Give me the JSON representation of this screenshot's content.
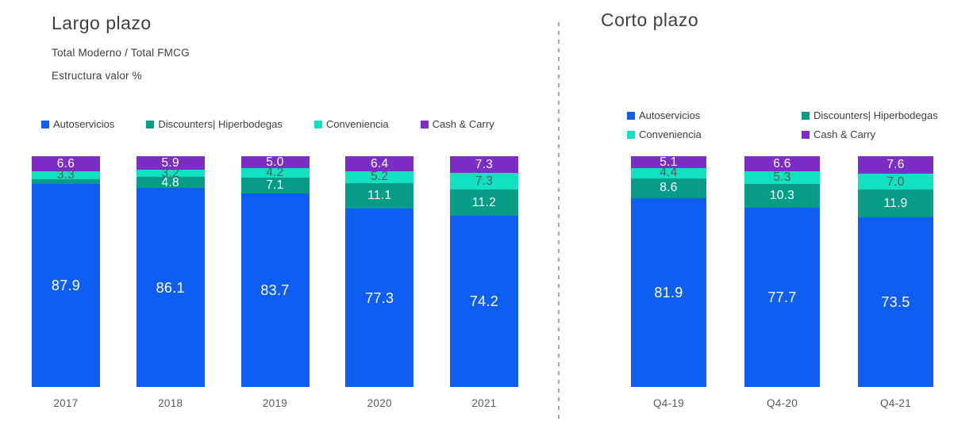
{
  "chart_data": [
    {
      "type": "bar",
      "stacked": true,
      "percent_stacked": true,
      "title": "Largo plazo",
      "subtitles": [
        "Total Moderno / Total FMCG",
        "Estructura valor %"
      ],
      "ylabel": "Estructura valor %",
      "ylim": [
        0,
        100
      ],
      "grid": false,
      "legend_position": "top",
      "categories": [
        "2017",
        "2018",
        "2019",
        "2020",
        "2021"
      ],
      "legend": [
        {
          "label": "Autoservicios",
          "color": "#0e5ff1"
        },
        {
          "label": "Discounters| Hiperbodegas",
          "color": "#069c87"
        },
        {
          "label": "Conveniencia",
          "color": "#10e2c1"
        },
        {
          "label": "Cash & Carry",
          "color": "#7c2dc6"
        }
      ],
      "series": [
        {
          "name": "Autoservicios",
          "color": "#0e5ff1",
          "label_color": "#ffffff",
          "values": [
            87.9,
            86.1,
            83.7,
            77.3,
            74.2
          ],
          "labels": [
            "87.9",
            "86.1",
            "83.7",
            "77.3",
            "74.2"
          ]
        },
        {
          "name": "Discounters| Hiperbodegas",
          "color": "#069c87",
          "label_color": "#ffffff",
          "values": [
            2.2,
            4.8,
            7.1,
            11.1,
            11.2
          ],
          "labels": [
            "",
            "4.8",
            "7.1",
            "11.1",
            "11.2"
          ]
        },
        {
          "name": "Conveniencia",
          "color": "#10e2c1",
          "label_color": "#595959",
          "values": [
            3.3,
            3.2,
            4.2,
            5.2,
            7.3
          ],
          "labels": [
            "3.3",
            "3.2",
            "4.2",
            "5.2",
            "7.3"
          ]
        },
        {
          "name": "Cash & Carry",
          "color": "#7c2dc6",
          "label_color": "#ffffff",
          "values": [
            6.6,
            5.9,
            5.0,
            6.4,
            7.3
          ],
          "labels": [
            "6.6",
            "5.9",
            "5.0",
            "6.4",
            "7.3"
          ]
        }
      ]
    },
    {
      "type": "bar",
      "stacked": true,
      "percent_stacked": true,
      "title": "Corto plazo",
      "subtitles": [],
      "ylim": [
        0,
        100
      ],
      "grid": false,
      "legend_position": "top",
      "categories": [
        "Q4-19",
        "Q4-20",
        "Q4-21"
      ],
      "legend": [
        {
          "label": "Autoservicios",
          "color": "#0e5ff1"
        },
        {
          "label": "Discounters| Hiperbodegas",
          "color": "#069c87"
        },
        {
          "label": "Conveniencia",
          "color": "#10e2c1"
        },
        {
          "label": "Cash & Carry",
          "color": "#7c2dc6"
        }
      ],
      "series": [
        {
          "name": "Autoservicios",
          "color": "#0e5ff1",
          "label_color": "#ffffff",
          "values": [
            81.9,
            77.7,
            73.5
          ],
          "labels": [
            "81.9",
            "77.7",
            "73.5"
          ]
        },
        {
          "name": "Discounters| Hiperbodegas",
          "color": "#069c87",
          "label_color": "#ffffff",
          "values": [
            8.6,
            10.3,
            11.9
          ],
          "labels": [
            "8.6",
            "10.3",
            "11.9"
          ]
        },
        {
          "name": "Conveniencia",
          "color": "#10e2c1",
          "label_color": "#595959",
          "values": [
            4.4,
            5.3,
            7.0
          ],
          "labels": [
            "4.4",
            "5.3",
            "7.0"
          ]
        },
        {
          "name": "Cash & Carry",
          "color": "#7c2dc6",
          "label_color": "#ffffff",
          "values": [
            5.1,
            6.6,
            7.6
          ],
          "labels": [
            "5.1",
            "6.6",
            "7.6"
          ]
        }
      ]
    }
  ]
}
